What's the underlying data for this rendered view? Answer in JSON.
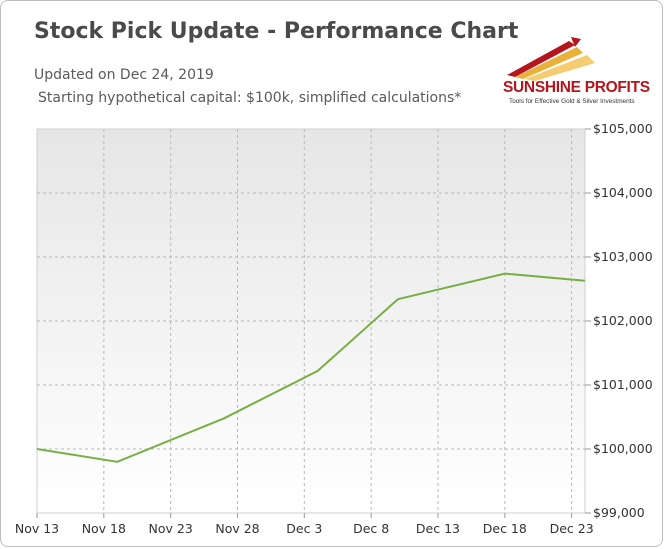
{
  "header": {
    "title": "Stock Pick Update - Performance Chart",
    "updated": "Updated on Dec 24, 2019",
    "capital_note": "Starting hypothetical capital: $100k, simplified calculations*"
  },
  "logo": {
    "name": "SUNSHINE PROFITS",
    "tagline": "Tools for Effective Gold & Silver Investments",
    "colors": [
      "#b5151c",
      "#e8b23a",
      "#f2c45a"
    ]
  },
  "chart_data": {
    "type": "line",
    "title": "",
    "xlabel": "",
    "ylabel": "",
    "x_tick_labels": [
      "Nov 13",
      "Nov 18",
      "Nov 23",
      "Nov 28",
      "Dec 3",
      "Dec 8",
      "Dec 13",
      "Dec 18",
      "Dec 23"
    ],
    "y_tick_labels": [
      "$99,000",
      "$100,000",
      "$101,000",
      "$102,000",
      "$103,000",
      "$104,000",
      "$105,000"
    ],
    "ylim": [
      99000,
      105000
    ],
    "xlim": [
      "2019-11-13",
      "2019-12-24"
    ],
    "grid": true,
    "legend": "none",
    "line_color": "#76b043",
    "series": [
      {
        "points": [
          {
            "x": "2019-11-13",
            "y": 100000
          },
          {
            "x": "2019-11-19",
            "y": 99800
          },
          {
            "x": "2019-11-27",
            "y": 100480
          },
          {
            "x": "2019-12-04",
            "y": 101220
          },
          {
            "x": "2019-12-10",
            "y": 102340
          },
          {
            "x": "2019-12-18",
            "y": 102740
          },
          {
            "x": "2019-12-24",
            "y": 102630
          }
        ]
      }
    ]
  }
}
